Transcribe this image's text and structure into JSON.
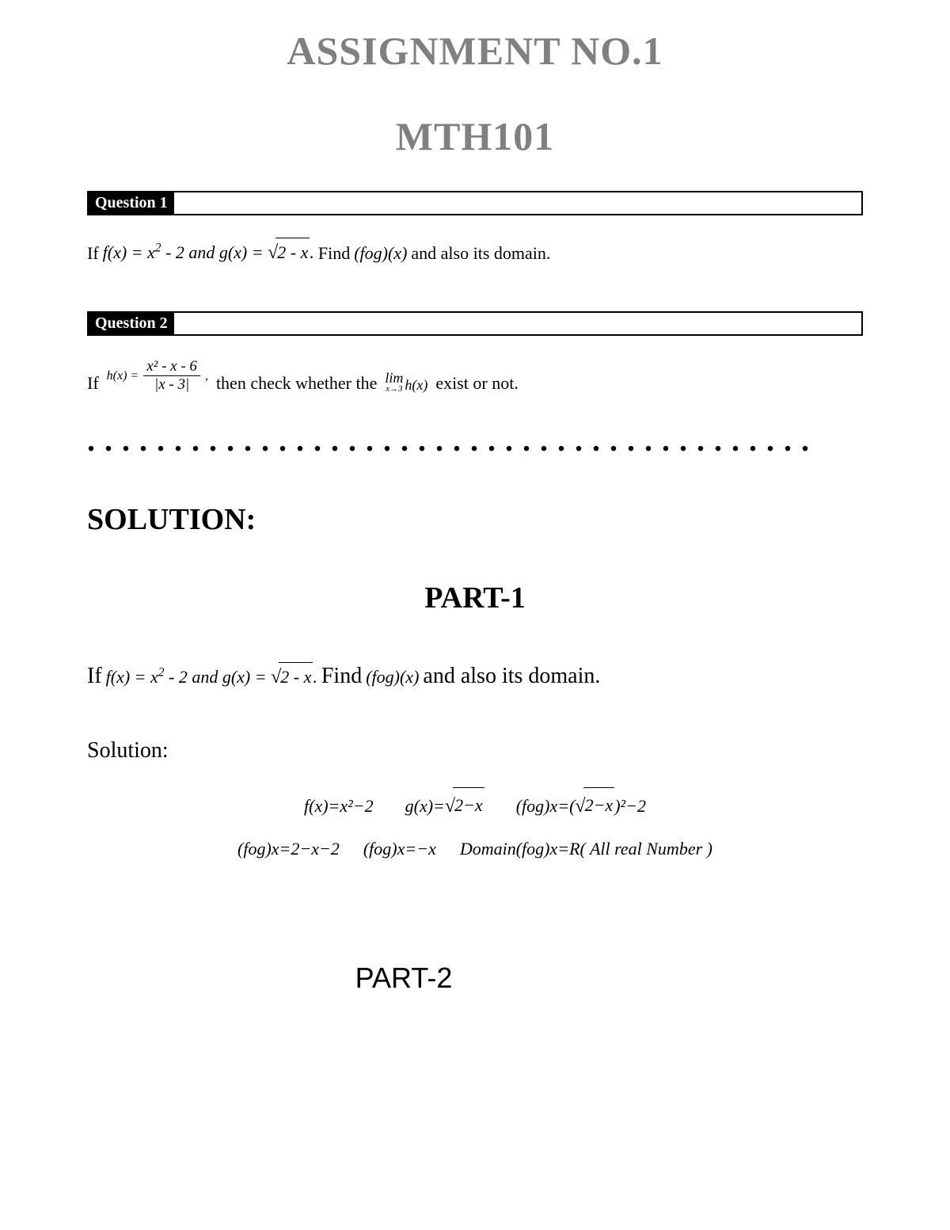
{
  "header": {
    "title": "ASSIGNMENT NO.1",
    "subtitle": "MTH101"
  },
  "question1": {
    "label": "Question 1",
    "if_text": "If",
    "f_def": "f(x) = x",
    "f_exp": "2",
    "f_rest": " - 2 and g(x) = ",
    "sqrt_content": "2 - x",
    "period": ".",
    "find_text": "Find",
    "fog": "(fog)(x)",
    "domain_text": "and also its domain."
  },
  "question2": {
    "label": "Question 2",
    "if_text": "If",
    "h_eq": "h(x) =",
    "numerator": "x² - x - 6",
    "denominator": "|x - 3|",
    "comma": ",",
    "then_text": "then check whether the",
    "lim_text": "lim",
    "lim_sub": "x→3",
    "lim_func": "h(x)",
    "exist_text": "exist or not."
  },
  "dots": "..........................................",
  "solution": {
    "heading": "SOLUTION:",
    "part1": "PART-1",
    "part2": "PART-2",
    "sub_label": "Solution:",
    "q1_restate_if": "If",
    "q1_restate_f": "f(x) = x",
    "q1_restate_exp": "2",
    "q1_restate_rest": " - 2 and g(x) = ",
    "q1_restate_sqrt": "2 - x",
    "q1_restate_period": ".",
    "q1_restate_find": "Find",
    "q1_restate_fog": "(fog)(x)",
    "q1_restate_domain": "and also its domain.",
    "line1_a": "f(x)=x²−2",
    "line1_b_pre": "g(x)=",
    "line1_b_sqrt": "2−x",
    "line1_c_pre": "(fog)x=(",
    "line1_c_sqrt": "2−x",
    "line1_c_post": ")²−2",
    "line2_a": "(fog)x=2−x−2",
    "line2_b": "(fog)x=−x",
    "line2_c": "Domain(fog)x=R( All real Number )"
  },
  "colors": {
    "title_color": "#808080",
    "text_color": "#000000",
    "background": "#ffffff"
  }
}
